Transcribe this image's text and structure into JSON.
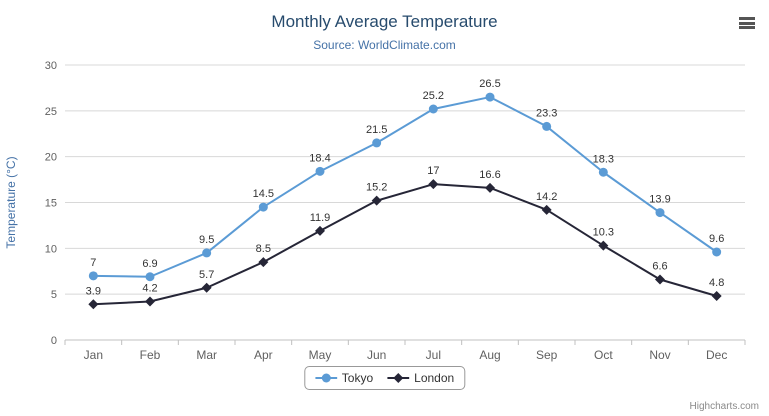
{
  "chart": {
    "title": "Monthly Average Temperature",
    "subtitle": "Source: WorldClimate.com",
    "credits": "Highcharts.com"
  },
  "colors": {
    "tokyo": "#5b9bd5",
    "london": "#262637",
    "grid": "#d8d8d8",
    "axis_line": "#c0c0c0",
    "tick_label": "#606060",
    "data_label": "#333333",
    "axis_title": "#4572a7"
  },
  "chart_data": {
    "type": "line",
    "title": "Monthly Average Temperature",
    "subtitle": "Source: WorldClimate.com",
    "categories": [
      "Jan",
      "Feb",
      "Mar",
      "Apr",
      "May",
      "Jun",
      "Jul",
      "Aug",
      "Sep",
      "Oct",
      "Nov",
      "Dec"
    ],
    "series": [
      {
        "name": "Tokyo",
        "color": "#5b9bd5",
        "marker": "circle",
        "values": [
          7,
          6.9,
          9.5,
          14.5,
          18.4,
          21.5,
          25.2,
          26.5,
          23.3,
          18.3,
          13.9,
          9.6
        ]
      },
      {
        "name": "London",
        "color": "#262637",
        "marker": "diamond",
        "values": [
          3.9,
          4.2,
          5.7,
          8.5,
          11.9,
          15.2,
          17,
          16.6,
          14.2,
          10.3,
          6.6,
          4.8
        ]
      }
    ],
    "xlabel": "",
    "ylabel": "Temperature (°C)",
    "ylim": [
      0,
      30
    ],
    "ytick_step": 5,
    "grid": true,
    "legend_position": "bottom-center",
    "data_labels": true
  }
}
